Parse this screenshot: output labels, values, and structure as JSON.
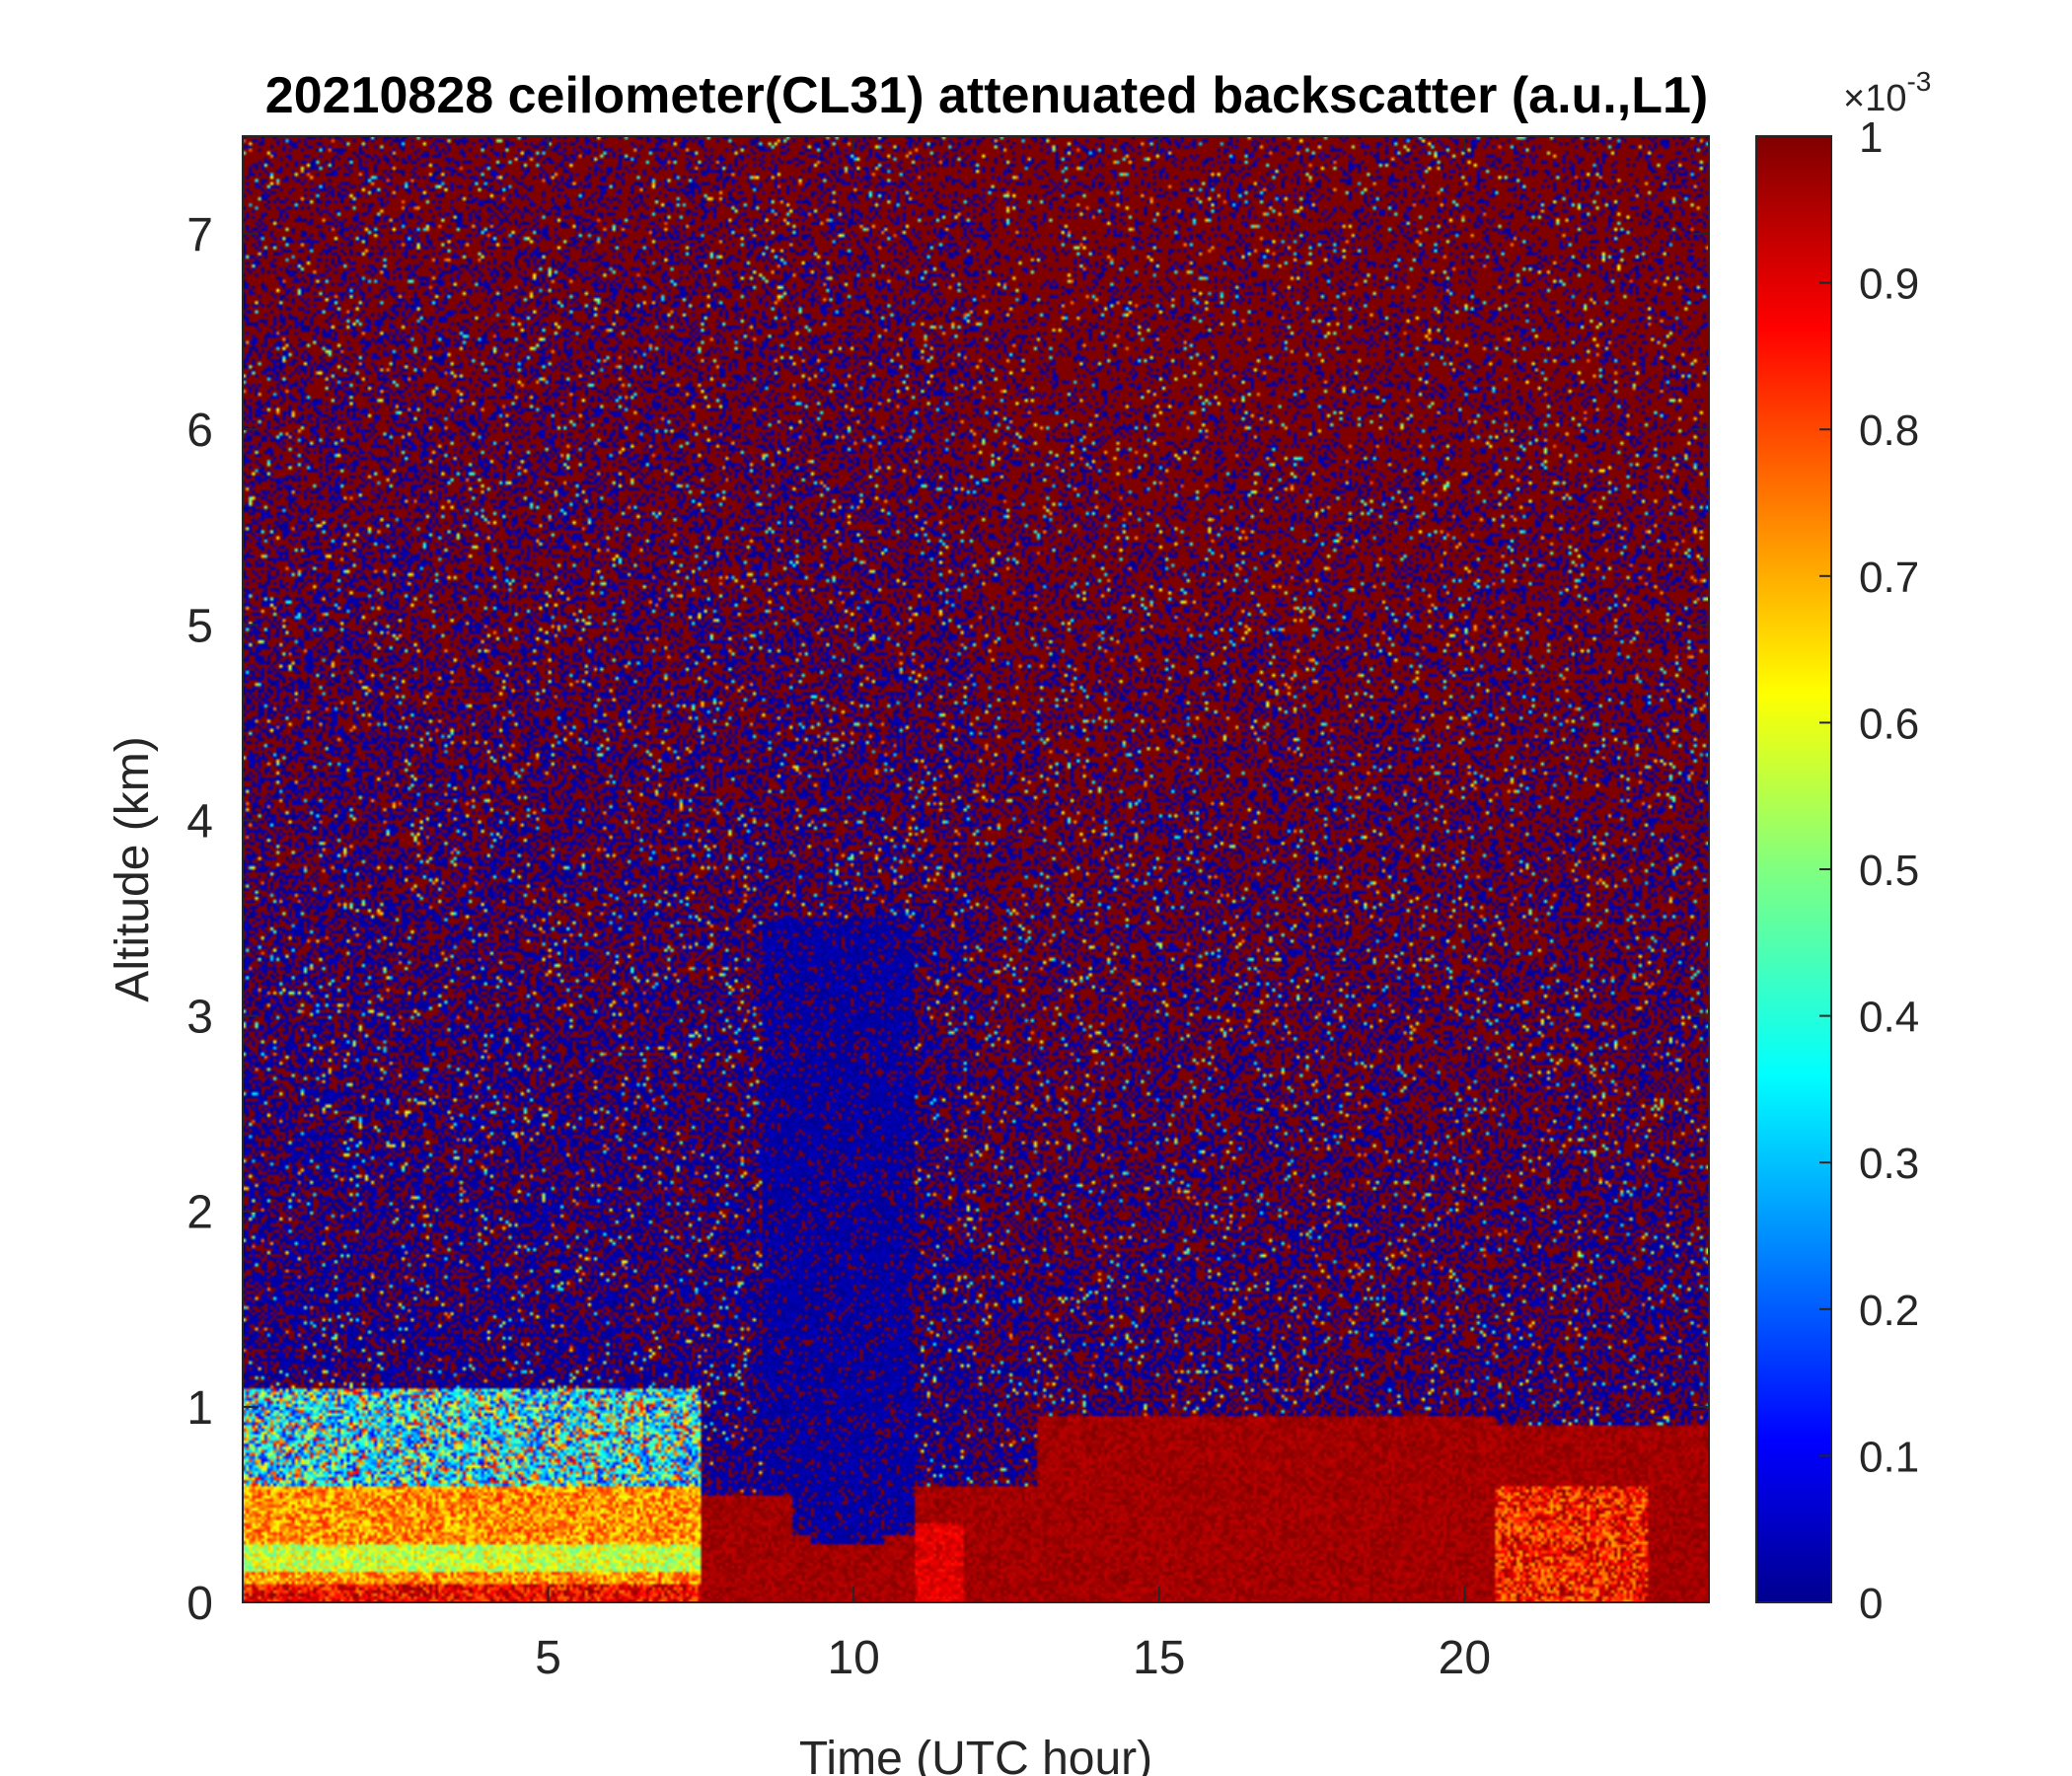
{
  "chart_data": {
    "type": "heatmap",
    "title": "20210828 ceilometer(CL31) attenuated backscatter (a.u.,L1)",
    "xlabel": "Time (UTC hour)",
    "ylabel": "Altitude (km)",
    "xlim": [
      0,
      24
    ],
    "ylim": [
      0,
      7.5
    ],
    "x_ticks": [
      5,
      10,
      15,
      20
    ],
    "y_ticks": [
      0,
      1,
      2,
      3,
      4,
      5,
      6,
      7
    ],
    "colorbar": {
      "colormap": "jet",
      "range": [
        0,
        1
      ],
      "ticks": [
        0,
        0.1,
        0.2,
        0.3,
        0.4,
        0.5,
        0.6,
        0.7,
        0.8,
        0.9,
        1
      ],
      "tick_labels": [
        "0",
        "0.1",
        "0.2",
        "0.3",
        "0.4",
        "0.5",
        "0.6",
        "0.7",
        "0.8",
        "0.9",
        "1"
      ],
      "multiplier_base": "×10",
      "multiplier_exponent": "-3"
    },
    "grid": false,
    "features": [
      {
        "x_range": [
          0,
          7.5
        ],
        "y_range": [
          0,
          0.6
        ],
        "value_range": [
          0.55,
          0.85
        ]
      },
      {
        "x_range": [
          7.5,
          24
        ],
        "y_range": [
          0,
          0.6
        ],
        "value_range": [
          0.9,
          1.0
        ]
      },
      {
        "x_range": [
          0,
          24
        ],
        "y_range": [
          1,
          7.5
        ],
        "value_range": [
          0,
          1.0
        ]
      }
    ]
  },
  "colors": {
    "background": "#ffffff",
    "axis": "#262626",
    "colormap_low": "#00008f",
    "colormap_high": "#800000"
  }
}
